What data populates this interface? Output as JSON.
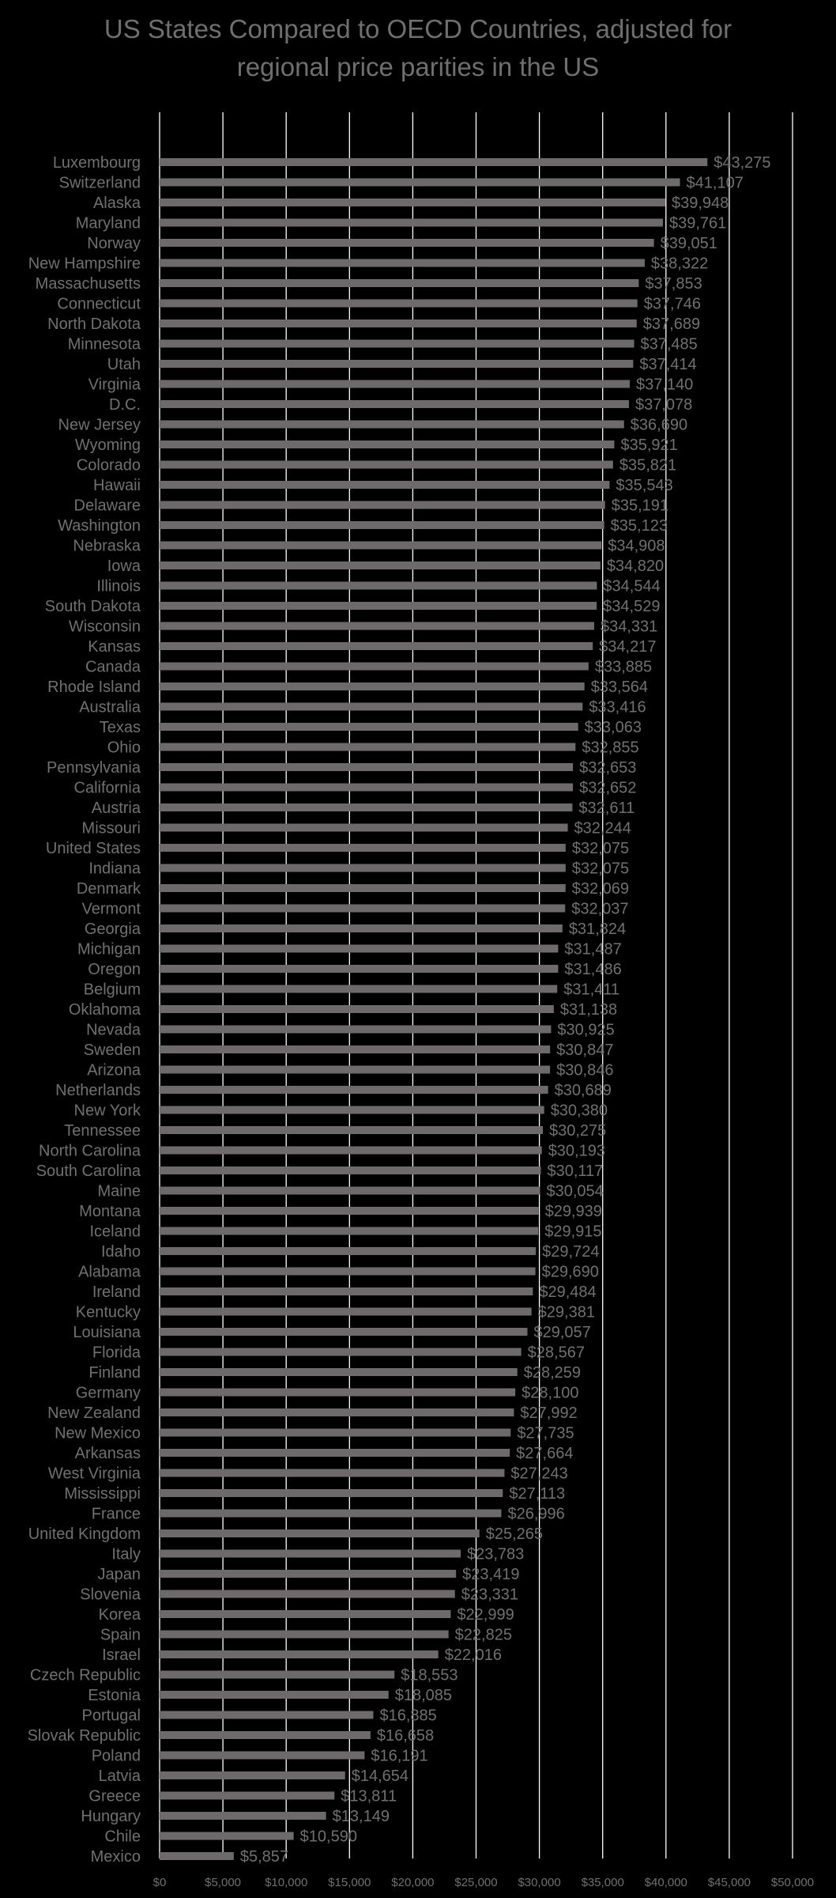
{
  "chart_data": {
    "type": "bar",
    "orientation": "horizontal",
    "title_line1": "US States Compared to OECD Countries, adjusted for",
    "title_line2": "regional price parities in the US",
    "xlabel": "",
    "ylabel": "",
    "xlim": [
      0,
      50000
    ],
    "grid": "vertical gridlines",
    "legend": "none",
    "colors": {
      "background": "#000000",
      "bar": "#6e6a6b",
      "text": "#707070",
      "grid": "#ffffff"
    },
    "ticks": [
      "$0",
      "$5,000",
      "$10,000",
      "$15,000",
      "$20,000",
      "$25,000",
      "$30,000",
      "$35,000",
      "$40,000",
      "$45,000",
      "$50,000"
    ],
    "tick_values": [
      0,
      5000,
      10000,
      15000,
      20000,
      25000,
      30000,
      35000,
      40000,
      45000,
      50000
    ],
    "categories": [
      "Luxembourg",
      "Switzerland",
      "Alaska",
      "Maryland",
      "Norway",
      "New Hampshire",
      "Massachusetts",
      "Connecticut",
      "North Dakota",
      "Minnesota",
      "Utah",
      "Virginia",
      "D.C.",
      "New Jersey",
      "Wyoming",
      "Colorado",
      "Hawaii",
      "Delaware",
      "Washington",
      "Nebraska",
      "Iowa",
      "Illinois",
      "South Dakota",
      "Wisconsin",
      "Kansas",
      "Canada",
      "Rhode Island",
      "Australia",
      "Texas",
      "Ohio",
      "Pennsylvania",
      "California",
      "Austria",
      "Missouri",
      "United States",
      "Indiana",
      "Denmark",
      "Vermont",
      "Georgia",
      "Michigan",
      "Oregon",
      "Belgium",
      "Oklahoma",
      "Nevada",
      "Sweden",
      "Arizona",
      "Netherlands",
      "New York",
      "Tennessee",
      "North Carolina",
      "South Carolina",
      "Maine",
      "Montana",
      "Iceland",
      "Idaho",
      "Alabama",
      "Ireland",
      "Kentucky",
      "Louisiana",
      "Florida",
      "Finland",
      "Germany",
      "New Zealand",
      "New Mexico",
      "Arkansas",
      "West Virginia",
      "Mississippi",
      "France",
      "United Kingdom",
      "Italy",
      "Japan",
      "Slovenia",
      "Korea",
      "Spain",
      "Israel",
      "Czech Republic",
      "Estonia",
      "Portugal",
      "Slovak Republic",
      "Poland",
      "Latvia",
      "Greece",
      "Hungary",
      "Chile",
      "Mexico"
    ],
    "values": [
      43275,
      41107,
      39948,
      39761,
      39051,
      38322,
      37853,
      37746,
      37689,
      37485,
      37414,
      37140,
      37078,
      36690,
      35921,
      35821,
      35543,
      35191,
      35123,
      34908,
      34820,
      34544,
      34529,
      34331,
      34217,
      33885,
      33564,
      33416,
      33063,
      32855,
      32653,
      32652,
      32611,
      32244,
      32075,
      32075,
      32069,
      32037,
      31824,
      31487,
      31486,
      31411,
      31138,
      30925,
      30847,
      30846,
      30689,
      30380,
      30275,
      30193,
      30117,
      30054,
      29939,
      29915,
      29724,
      29690,
      29484,
      29381,
      29057,
      28567,
      28259,
      28100,
      27992,
      27735,
      27664,
      27243,
      27113,
      26996,
      25265,
      23783,
      23419,
      23331,
      22999,
      22825,
      22016,
      18553,
      18085,
      16885,
      16658,
      16191,
      14654,
      13811,
      13149,
      10590,
      5857
    ],
    "data_labels": [
      "$43,275",
      "$41,107",
      "$39,948",
      "$39,761",
      "$39,051",
      "$38,322",
      "$37,853",
      "$37,746",
      "$37,689",
      "$37,485",
      "$37,414",
      "$37,140",
      "$37,078",
      "$36,690",
      "$35,921",
      "$35,821",
      "$35,543",
      "$35,191",
      "$35,123",
      "$34,908",
      "$34,820",
      "$34,544",
      "$34,529",
      "$34,331",
      "$34,217",
      "$33,885",
      "$33,564",
      "$33,416",
      "$33,063",
      "$32,855",
      "$32,653",
      "$32,652",
      "$32,611",
      "$32,244",
      "$32,075",
      "$32,075",
      "$32,069",
      "$32,037",
      "$31,824",
      "$31,487",
      "$31,486",
      "$31,411",
      "$31,138",
      "$30,925",
      "$30,847",
      "$30,846",
      "$30,689",
      "$30,380",
      "$30,275",
      "$30,193",
      "$30,117",
      "$30,054",
      "$29,939",
      "$29,915",
      "$29,724",
      "$29,690",
      "$29,484",
      "$29,381",
      "$29,057",
      "$28,567",
      "$28,259",
      "$28,100",
      "$27,992",
      "$27,735",
      "$27,664",
      "$27,243",
      "$27,113",
      "$26,996",
      "$25,265",
      "$23,783",
      "$23,419",
      "$23,331",
      "$22,999",
      "$22,825",
      "$22,016",
      "$18,553",
      "$18,085",
      "$16,885",
      "$16,658",
      "$16,191",
      "$14,654",
      "$13,811",
      "$13,149",
      "$10,590",
      "$5,857"
    ]
  }
}
